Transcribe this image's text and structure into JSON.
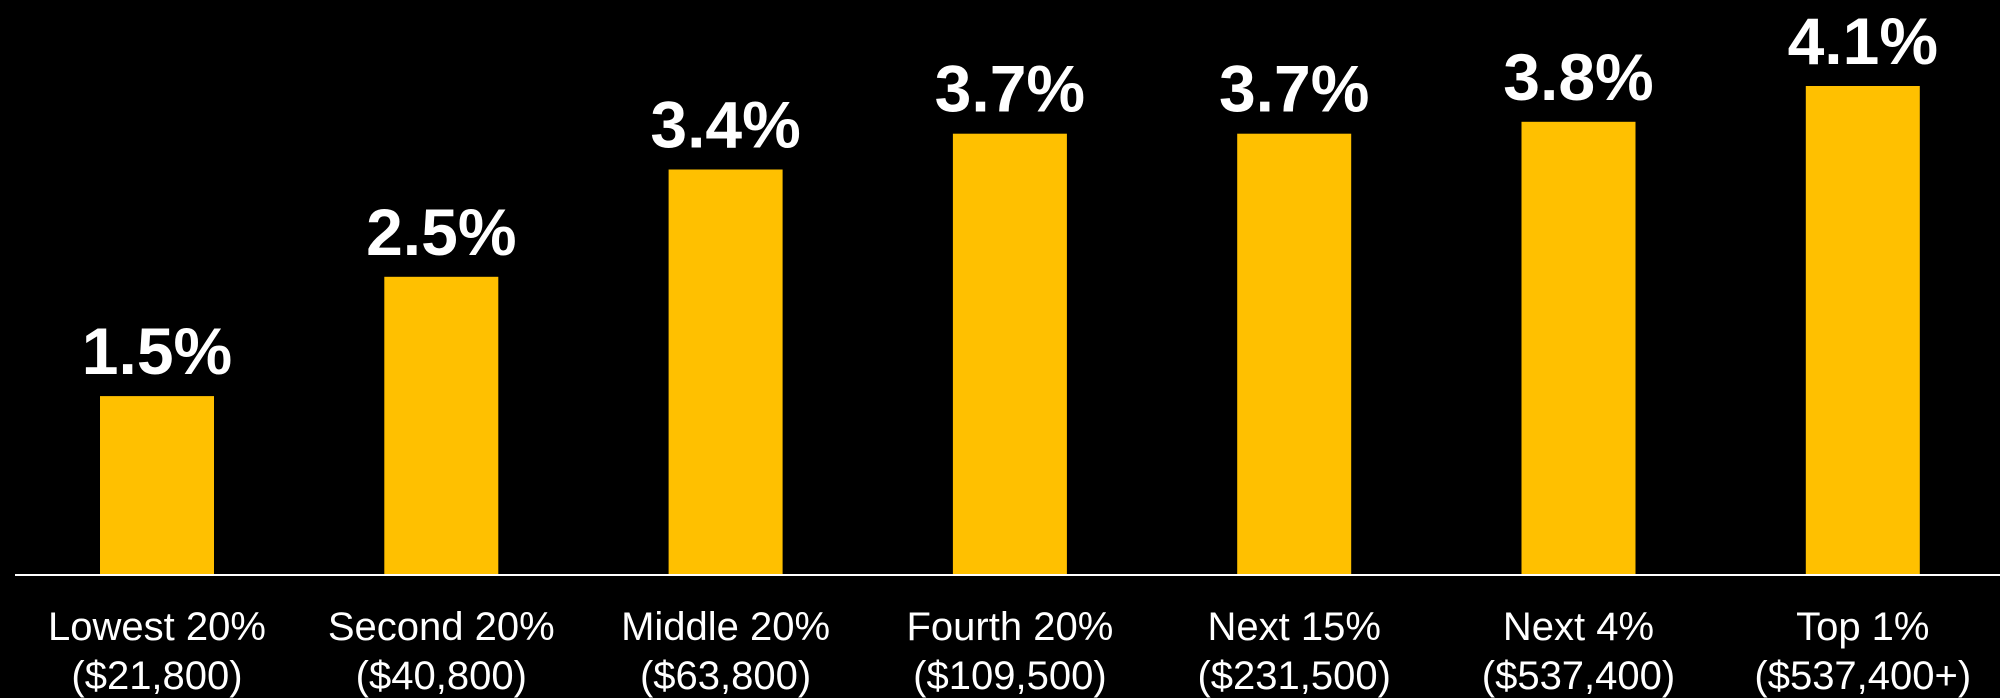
{
  "chart_data": {
    "type": "bar",
    "title": "",
    "xlabel": "",
    "ylabel": "",
    "ylim": [
      0,
      4.1
    ],
    "grid": false,
    "categories": [
      {
        "name": "Lowest 20%",
        "range": "($21,800)"
      },
      {
        "name": "Second 20%",
        "range": "($40,800)"
      },
      {
        "name": "Middle 20%",
        "range": "($63,800)"
      },
      {
        "name": "Fourth 20%",
        "range": "($109,500)"
      },
      {
        "name": "Next 15%",
        "range": "($231,500)"
      },
      {
        "name": "Next 4%",
        "range": "($537,400)"
      },
      {
        "name": "Top 1%",
        "range": "($537,400+)"
      }
    ],
    "values": [
      1.5,
      2.5,
      3.4,
      3.7,
      3.7,
      3.8,
      4.1
    ],
    "value_labels": [
      "1.5%",
      "2.5%",
      "3.4%",
      "3.7%",
      "3.7%",
      "3.8%",
      "4.1%"
    ],
    "colors": {
      "background": "#000000",
      "bar": "#FFC000",
      "text": "#FFFFFF",
      "axis": "#FFFFFF"
    }
  }
}
